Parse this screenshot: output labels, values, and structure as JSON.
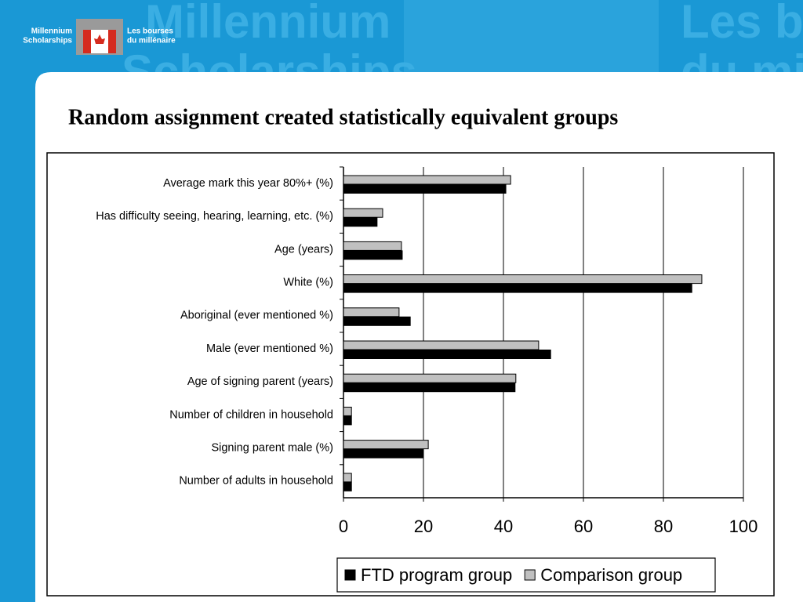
{
  "logo": {
    "en": [
      "Millennium",
      "Scholarships"
    ],
    "fr": [
      "Les bourses",
      "du millénaire"
    ]
  },
  "chart_data": {
    "type": "barh",
    "title": "Random assignment created statistically equivalent groups",
    "categories": [
      "Average mark this year 80%+ (%)",
      "Has difficulty seeing, hearing, learning, etc. (%)",
      "Age (years)",
      "White (%)",
      "Aboriginal (ever mentioned %)",
      "Male (ever mentioned %)",
      "Age of signing parent (years)",
      "Number of children in household",
      "Signing parent male (%)",
      "Number of adults in household"
    ],
    "series": [
      {
        "name": "FTD program group",
        "color": "#000000",
        "values": [
          40.6,
          8.4,
          14.7,
          87.1,
          16.7,
          51.8,
          42.9,
          2.0,
          20.0,
          2.0
        ]
      },
      {
        "name": "Comparison group",
        "color": "#c0c0c0",
        "values": [
          41.8,
          9.8,
          14.5,
          89.6,
          13.9,
          48.8,
          43.1,
          2.0,
          21.2,
          2.0
        ]
      }
    ],
    "xlim": [
      0,
      100
    ],
    "xticks": [
      0,
      20,
      40,
      60,
      80,
      100
    ],
    "grid": true,
    "legend": "bottom"
  }
}
